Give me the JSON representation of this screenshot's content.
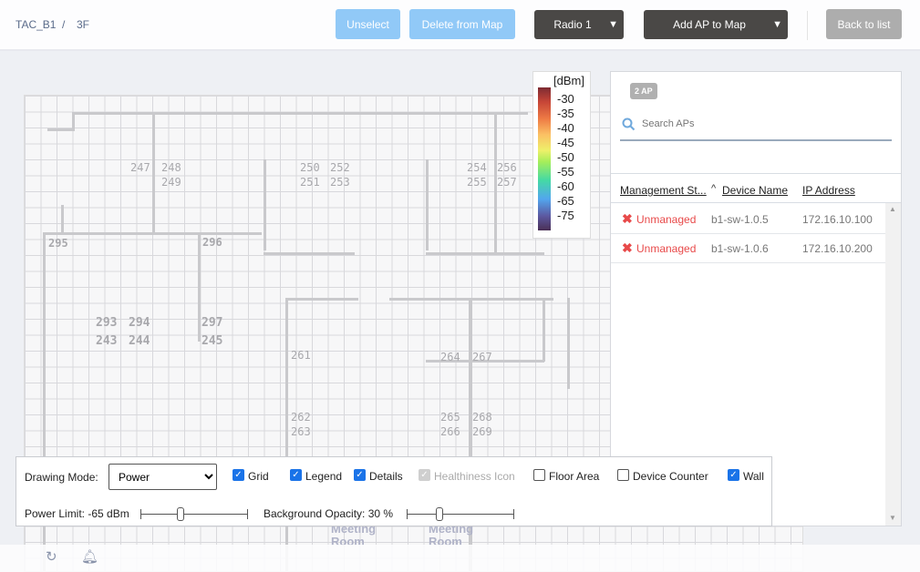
{
  "breadcrumb": {
    "site": "TAC_B1",
    "separator": "/",
    "floor": "3F"
  },
  "header": {
    "unselect": "Unselect",
    "delete": "Delete from Map",
    "radio": "Radio 1",
    "add_ap": "Add AP to Map",
    "back": "Back to list"
  },
  "map": {
    "rooms": [
      "247",
      "248",
      "249",
      "250",
      "252",
      "251",
      "253",
      "254",
      "256",
      "255",
      "257",
      "295",
      "296",
      "293",
      "294",
      "243",
      "244",
      "297",
      "245",
      "261",
      "264",
      "267",
      "262",
      "263",
      "265",
      "268",
      "266",
      "269"
    ],
    "meeting_rooms": [
      "Meeting Room",
      "Meeting Room"
    ]
  },
  "legend": {
    "unit": "[dBm]",
    "ticks": [
      "-30",
      "-35",
      "-40",
      "-45",
      "-50",
      "-55",
      "-60",
      "-65",
      "-75"
    ]
  },
  "panel": {
    "badge": "2 AP",
    "search_placeholder": "Search APs",
    "columns": [
      "Management St...",
      "Device Name",
      "IP Address"
    ],
    "sort_icon": "^",
    "rows": [
      {
        "status": "Unmanaged",
        "name": "b1-sw-1.0.5",
        "ip": "172.16.10.100"
      },
      {
        "status": "Unmanaged",
        "name": "b1-sw-1.0.6",
        "ip": "172.16.10.200"
      }
    ]
  },
  "toolbar": {
    "drawing_mode_label": "Drawing Mode:",
    "drawing_mode": "Power",
    "checks": [
      {
        "label": "Grid",
        "checked": true
      },
      {
        "label": "Legend",
        "checked": true
      },
      {
        "label": "Details",
        "checked": true
      },
      {
        "label": "Healthiness Icon",
        "checked": true,
        "disabled": true
      },
      {
        "label": "Floor Area",
        "checked": false
      },
      {
        "label": "Device Counter",
        "checked": false
      },
      {
        "label": "Wall",
        "checked": true
      }
    ],
    "power_limit": "Power Limit: -65 dBm",
    "bg_opacity": "Background Opacity: 30 %",
    "power_value": -65,
    "opacity_value": 30
  },
  "colors": {
    "accent": "#1a73e8",
    "light_button": "#91c9f7",
    "dark_button": "#4a4846",
    "error": "#e84a4a"
  }
}
